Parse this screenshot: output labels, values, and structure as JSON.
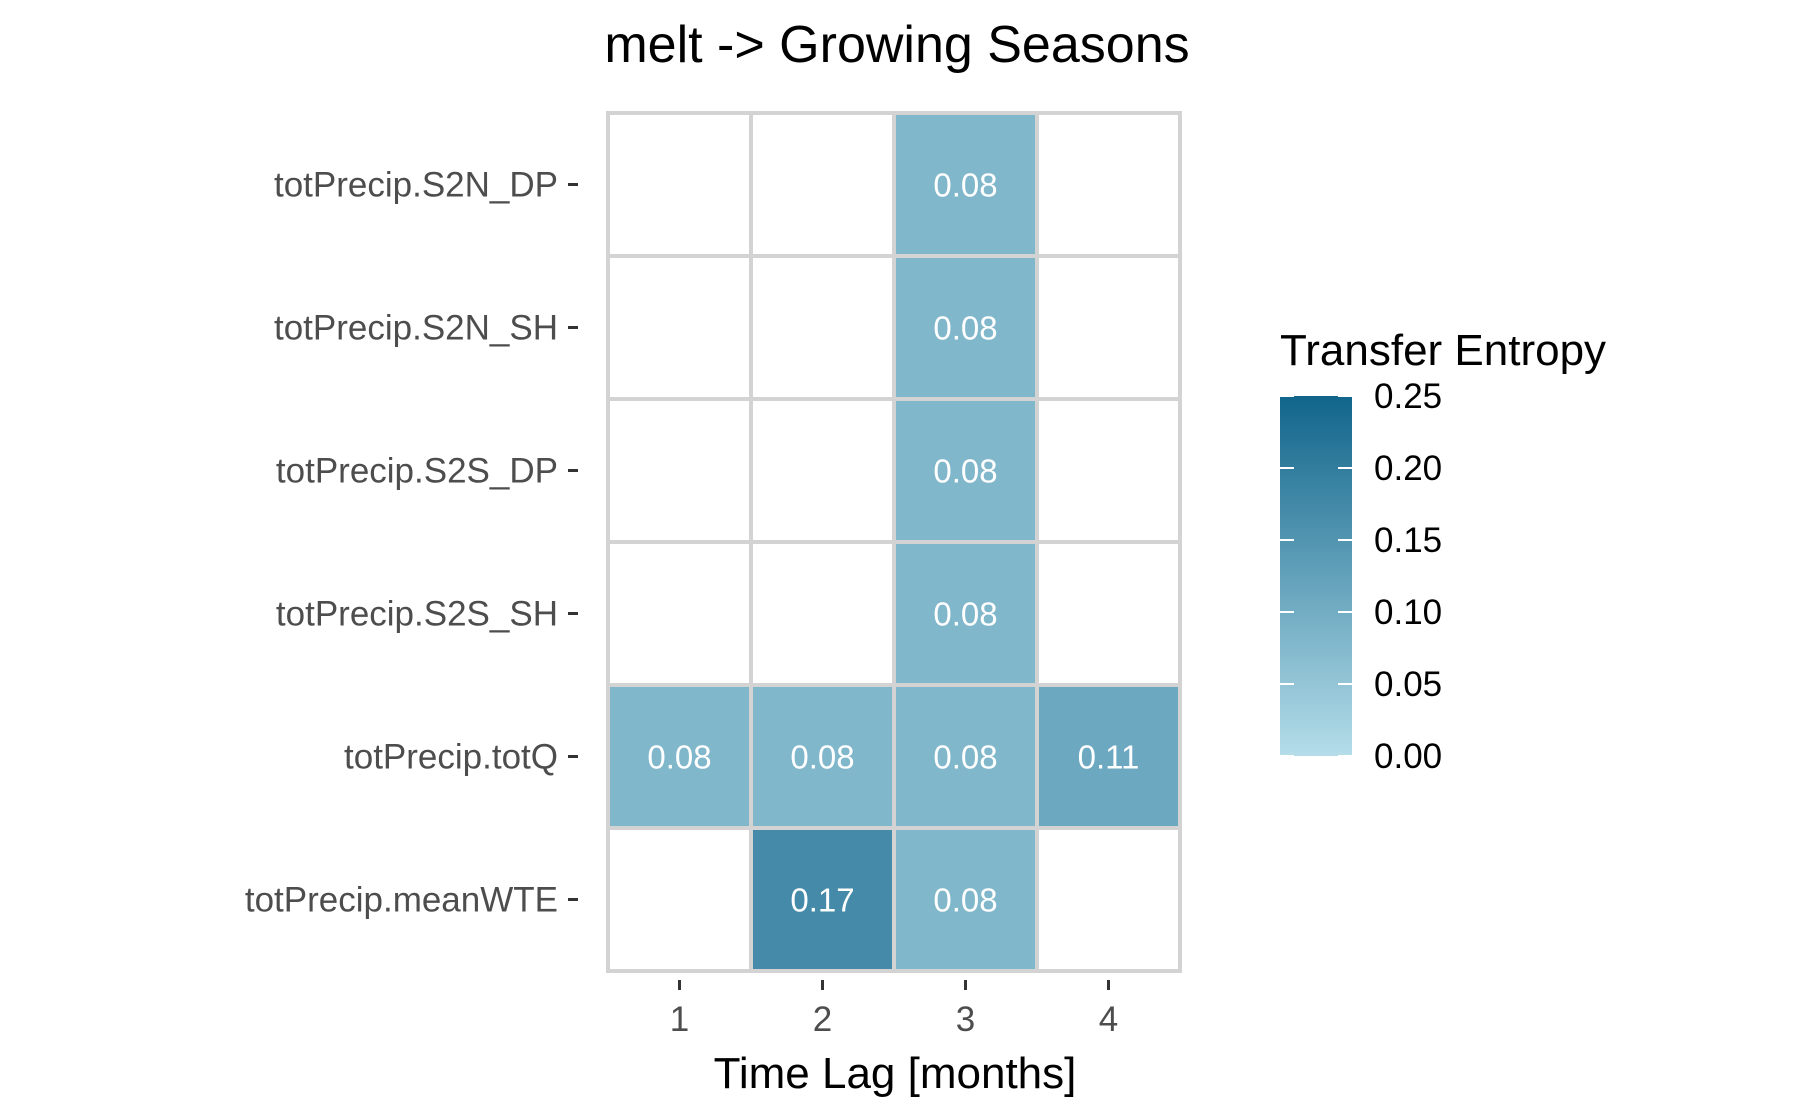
{
  "chart_data": {
    "type": "heatmap",
    "title": "melt -> Growing Seasons",
    "xlabel": "Time Lag [months]",
    "ylabel": "",
    "x_categories": [
      "1",
      "2",
      "3",
      "4"
    ],
    "y_categories": [
      "totPrecip.S2N_DP",
      "totPrecip.S2N_SH",
      "totPrecip.S2S_DP",
      "totPrecip.S2S_SH",
      "totPrecip.totQ",
      "totPrecip.meanWTE"
    ],
    "cells": [
      {
        "x": "3",
        "y": "totPrecip.S2N_DP",
        "value": 0.08,
        "label": "0.08"
      },
      {
        "x": "3",
        "y": "totPrecip.S2N_SH",
        "value": 0.08,
        "label": "0.08"
      },
      {
        "x": "3",
        "y": "totPrecip.S2S_DP",
        "value": 0.08,
        "label": "0.08"
      },
      {
        "x": "3",
        "y": "totPrecip.S2S_SH",
        "value": 0.08,
        "label": "0.08"
      },
      {
        "x": "1",
        "y": "totPrecip.totQ",
        "value": 0.08,
        "label": "0.08"
      },
      {
        "x": "2",
        "y": "totPrecip.totQ",
        "value": 0.08,
        "label": "0.08"
      },
      {
        "x": "3",
        "y": "totPrecip.totQ",
        "value": 0.08,
        "label": "0.08"
      },
      {
        "x": "4",
        "y": "totPrecip.totQ",
        "value": 0.11,
        "label": "0.11"
      },
      {
        "x": "2",
        "y": "totPrecip.meanWTE",
        "value": 0.17,
        "label": "0.17"
      },
      {
        "x": "3",
        "y": "totPrecip.meanWTE",
        "value": 0.08,
        "label": "0.08"
      }
    ],
    "legend": {
      "title": "Transfer Entropy",
      "range": [
        0,
        0.25
      ],
      "ticks": [
        "0.00",
        "0.05",
        "0.10",
        "0.15",
        "0.20",
        "0.25"
      ],
      "low_color": "#b4dde9",
      "high_color": "#11658b",
      "placement": "right"
    },
    "empty_cell_color": "#ffffff",
    "grid_line_color": "#d3d3d3"
  }
}
